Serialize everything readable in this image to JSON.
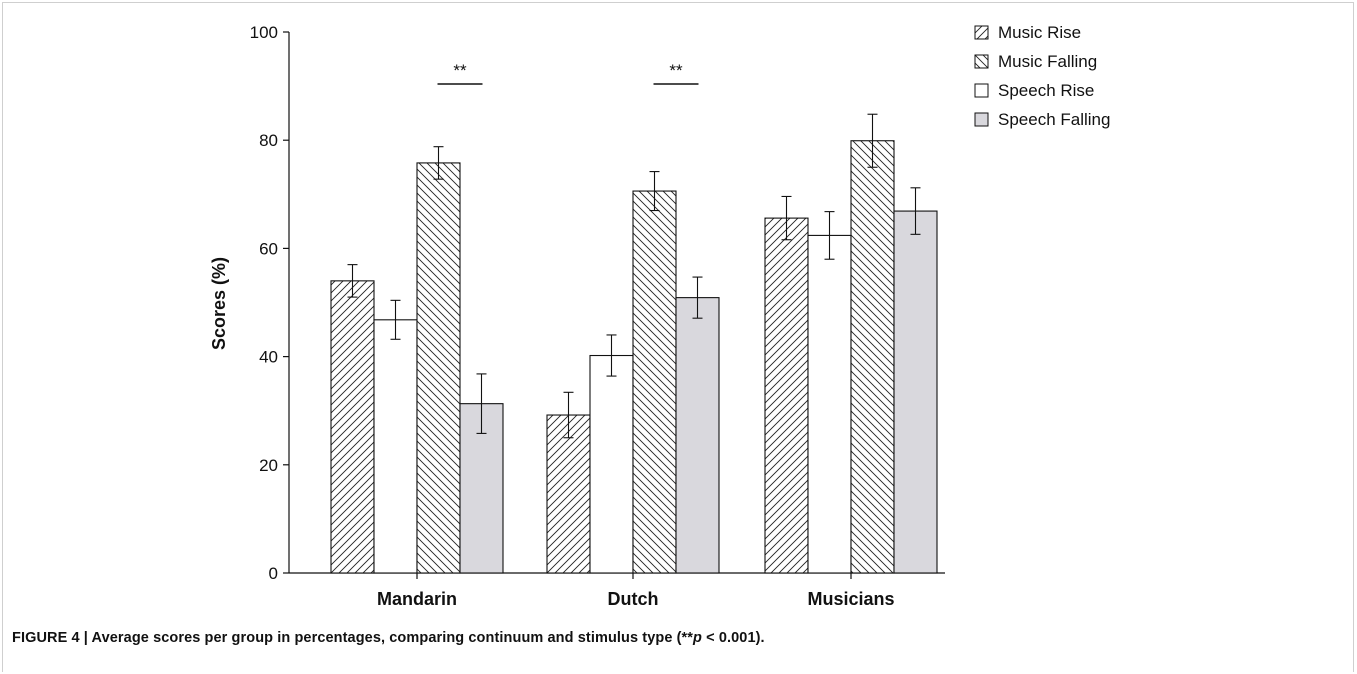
{
  "chart_data": {
    "type": "bar",
    "categories": [
      "Mandarin",
      "Dutch",
      "Musicians"
    ],
    "ylabel": "Scores (%)",
    "xlabel": "",
    "ylim": [
      0,
      100
    ],
    "yticks": [
      "0",
      "20",
      "40",
      "60",
      "80",
      "100"
    ],
    "grid": false,
    "legend_position": "top-right",
    "series": [
      {
        "name": "Music Rise",
        "pattern": "hatch-up",
        "fill": "#ffffff",
        "values": [
          54.0,
          29.2,
          65.6
        ],
        "errors": [
          3.0,
          4.2,
          4.0
        ]
      },
      {
        "name": "Speech Rise",
        "pattern": "none",
        "fill": "#ffffff",
        "values": [
          46.8,
          40.2,
          62.4
        ],
        "errors": [
          3.6,
          3.8,
          4.4
        ]
      },
      {
        "name": "Music Falling",
        "pattern": "hatch-down",
        "fill": "#ffffff",
        "values": [
          75.8,
          70.6,
          79.9
        ],
        "errors": [
          3.0,
          3.6,
          4.9
        ]
      },
      {
        "name": "Speech Falling",
        "pattern": "none",
        "fill": "#d9d8dd",
        "values": [
          31.3,
          50.9,
          66.9
        ],
        "errors": [
          5.5,
          3.8,
          4.3
        ]
      }
    ],
    "legend_order": [
      "Music Rise",
      "Music Falling",
      "Speech Rise",
      "Speech Falling"
    ],
    "annotations": [
      {
        "text": "**",
        "group": "Mandarin",
        "between": [
          "Music Falling",
          "Speech Falling"
        ]
      },
      {
        "text": "**",
        "group": "Dutch",
        "between": [
          "Music Falling",
          "Speech Falling"
        ]
      }
    ]
  },
  "caption": {
    "prefix": "FIGURE 4 | Average scores per group in percentages, comparing continuum and stimulus type (**",
    "p": "p",
    "suffix": " < 0.001)."
  }
}
